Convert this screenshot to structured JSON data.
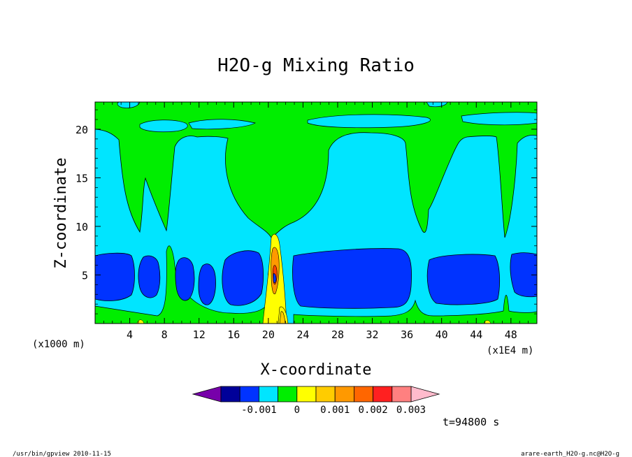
{
  "chart_data": {
    "type": "heatmap",
    "title": "H2O-g Mixing Ratio",
    "xlabel": "X-coordinate",
    "ylabel": "Z-coordinate",
    "x_unit_left": "(x1000 m)",
    "x_unit_right": "(x1E4 m)",
    "xlim": [
      0,
      51
    ],
    "ylim": [
      0,
      22.8
    ],
    "x_ticks": [
      "4",
      "8",
      "12",
      "16",
      "20",
      "24",
      "28",
      "32",
      "36",
      "40",
      "44",
      "48"
    ],
    "x_tick_values": [
      4,
      8,
      12,
      16,
      20,
      24,
      28,
      32,
      36,
      40,
      44,
      48
    ],
    "y_ticks": [
      "5",
      "10",
      "15",
      "20"
    ],
    "y_tick_values": [
      5,
      10,
      15,
      20
    ],
    "colorbar": {
      "labels": [
        "-0.001",
        "0",
        "0.001",
        "0.002",
        "0.003"
      ],
      "label_positions": [
        -0.001,
        0,
        0.001,
        0.002,
        0.003
      ],
      "levels": [
        -0.0025,
        -0.002,
        -0.0015,
        -0.001,
        -0.0005,
        0,
        0.0005,
        0.001,
        0.0015,
        0.002,
        0.0025,
        0.003,
        0.0035
      ],
      "colors": [
        "#000099",
        "#0033ff",
        "#00e5ff",
        "#00ee00",
        "#ffff00",
        "#ffcc00",
        "#ff9900",
        "#ff6600",
        "#ff2020",
        "#ff8080"
      ],
      "under_color": "#7700aa",
      "over_color": "#ffbbcc"
    },
    "fill_colors": {
      "green": "#00ee00",
      "cyan": "#00e5ff",
      "blue": "#0033ff",
      "navy": "#000099",
      "yellow": "#ffff00",
      "orange": "#ff9900",
      "red": "#ff4400"
    },
    "time_label": "t=94800 s",
    "grid": false
  },
  "footer": {
    "left": "/usr/bin/gpview  2010-11-15",
    "right": "arare-earth_H2O-g.nc@H2O-g"
  }
}
